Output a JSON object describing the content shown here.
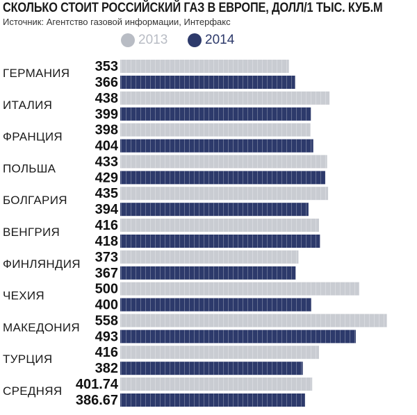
{
  "chart_data": {
    "type": "bar",
    "orientation": "horizontal",
    "title": "СКОЛЬКО СТОИТ РОССИЙСКИЙ ГАЗ В ЕВРОПЕ, ДОЛЛ/1 ТЫС. КУБ.М",
    "subtitle": "Источник: Агентство газовой информации, Интерфакс",
    "legend_placement": "top",
    "grid": false,
    "categories": [
      "ГЕРМАНИЯ",
      "ИТАЛИЯ",
      "ФРАНЦИЯ",
      "ПОЛЬША",
      "БОЛГАРИЯ",
      "ВЕНГРИЯ",
      "ФИНЛЯНДИЯ",
      "ЧЕХИЯ",
      "МАКЕДОНИЯ",
      "ТУРЦИЯ",
      "СРЕДНЯЯ"
    ],
    "series": [
      {
        "name": "2013",
        "color": "#c9ccd2",
        "values": [
          353,
          438,
          398,
          433,
          435,
          416,
          373,
          500,
          558,
          416,
          401.74
        ],
        "labels": [
          "353",
          "438",
          "398",
          "433",
          "435",
          "416",
          "373",
          "500",
          "558",
          "416",
          "401.74"
        ]
      },
      {
        "name": "2014",
        "color": "#2d3a6b",
        "values": [
          366,
          399,
          404,
          429,
          394,
          418,
          367,
          400,
          493,
          382,
          386.67
        ],
        "labels": [
          "366",
          "399",
          "404",
          "429",
          "394",
          "418",
          "367",
          "400",
          "493",
          "382",
          "386.67"
        ]
      }
    ],
    "xlim": [
      0,
      600
    ]
  },
  "legend": {
    "series_2013": "2013",
    "series_2014": "2014"
  },
  "colors": {
    "dot_2013": "#b8bcc4",
    "dot_2014": "#2d3a6b",
    "text": "#1a1a1a"
  }
}
